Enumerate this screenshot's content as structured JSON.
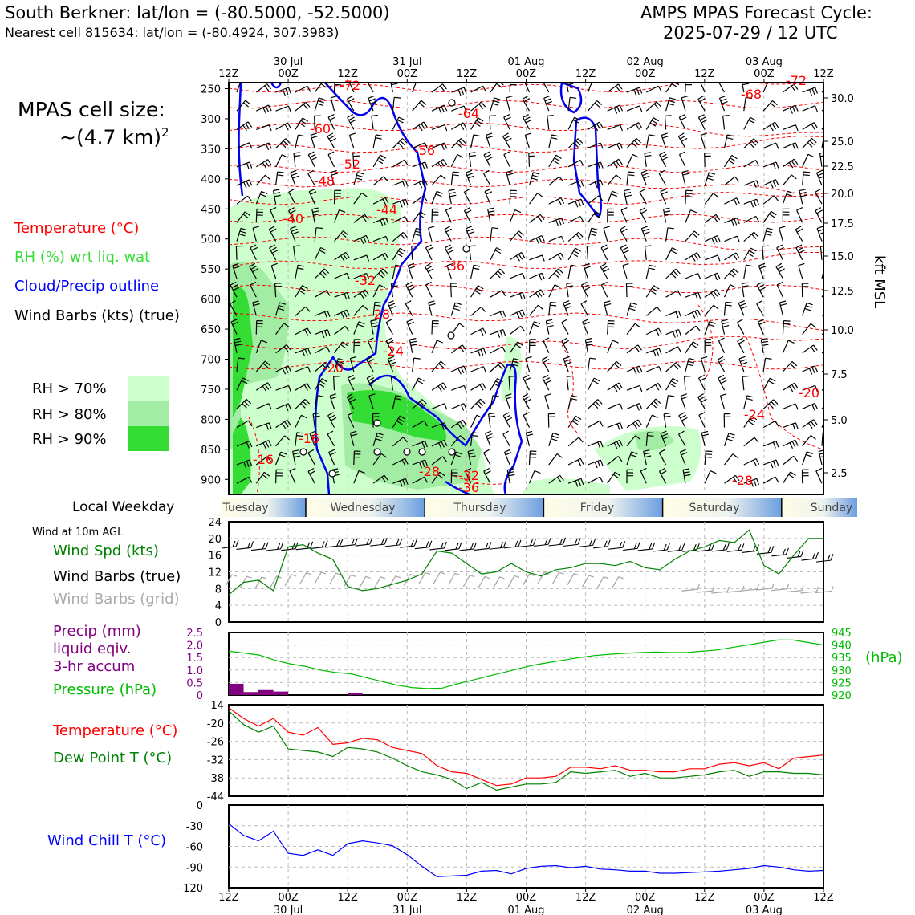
{
  "header": {
    "title_left": "South Berkner: lat/lon = (-80.5000, -52.5000)",
    "subtitle_left": "Nearest cell 815634: lat/lon = (-80.4924, 307.3983)",
    "title_right_1": "AMPS MPAS Forecast Cycle:",
    "title_right_2": "2025-07-29 / 12 UTC"
  },
  "legend": {
    "cell_size_1": "MPAS cell size:",
    "cell_size_2": "~(4.7 km)",
    "cell_size_sup": "2",
    "temperature": "Temperature (°C)",
    "rh": "RH (%) wrt liq. wat",
    "cloud": "Cloud/Precip outline",
    "barbs": "Wind Barbs (kts) (true)",
    "rh70": "RH > 70%",
    "rh80": "RH > 80%",
    "rh90": "RH > 90%",
    "colors": {
      "temperature": "#ff0000",
      "rh": "#33dd33",
      "cloud": "#0000ff",
      "rh70": "#ccffcc",
      "rh80": "#a3eca3",
      "rh90": "#33dd33"
    }
  },
  "panel_labels": {
    "local_weekday": "Local Weekday",
    "wind_10m": "Wind at 10m AGL",
    "wind_spd": "Wind Spd (kts)",
    "wind_barbs_true": "Wind Barbs (true)",
    "wind_barbs_grid": "Wind Barbs (grid)",
    "precip_1": "Precip (mm)",
    "precip_2": "liquid eqiv.",
    "precip_3": "3-hr accum",
    "pressure": "Pressure (hPa)",
    "hpa": "(hPa)",
    "temp": "Temperature (°C)",
    "dewpt": "Dew Point T (°C)",
    "windchill": "Wind Chill T (°C)",
    "kft": "kft MSL"
  },
  "time_axis": {
    "hours": [
      "12Z",
      "00Z",
      "12Z",
      "00Z",
      "12Z",
      "00Z",
      "12Z",
      "00Z",
      "12Z",
      "00Z",
      "12Z"
    ],
    "dates": [
      "",
      "30 Jul",
      "",
      "31 Jul",
      "",
      "01 Aug",
      "",
      "02 Aug",
      "",
      "03 Aug",
      ""
    ]
  },
  "weekdays": [
    "Tuesday",
    "Wednesday",
    "Thursday",
    "Friday",
    "Saturday",
    "Sunday"
  ],
  "chart_data": [
    {
      "type": "heatmap",
      "name": "time-height cross section",
      "y_pressure_ticks": [
        "250",
        "300",
        "350",
        "400",
        "450",
        "500",
        "550",
        "600",
        "650",
        "700",
        "750",
        "800",
        "850",
        "900"
      ],
      "y_kft_ticks": [
        "30.0",
        "25.0",
        "22.5",
        "20.0",
        "17.5",
        "15.0",
        "12.5",
        "10.0",
        "7.5",
        "5.0",
        "2.5"
      ],
      "temperature_labels": [
        "-72",
        "-64",
        "-60",
        "-56",
        "-52",
        "-48",
        "-44",
        "-40",
        "-36",
        "-32",
        "-28",
        "-24",
        "-20",
        "-16",
        "-16",
        "-28",
        "-32",
        "-36",
        "-68",
        "-72",
        "-20",
        "-24",
        "-28"
      ],
      "ylim": [
        925,
        240
      ]
    },
    {
      "type": "line",
      "name": "wind speed",
      "yticks": [
        "0",
        "4",
        "8",
        "12",
        "16",
        "20",
        "24"
      ],
      "ylim": [
        0,
        24
      ],
      "series": [
        {
          "values": [
            6.5,
            9.5,
            10,
            7.5,
            18,
            18.5,
            16.5,
            15,
            8.5,
            7.5,
            8,
            9,
            10,
            11.5,
            17,
            16.5,
            14,
            11.5,
            12,
            14,
            12,
            11,
            12.5,
            13,
            14,
            14,
            13.5,
            14.5,
            13,
            12.5,
            15,
            17,
            18,
            19.5,
            19,
            22,
            13.5,
            11.5,
            16,
            20,
            20
          ]
        }
      ]
    },
    {
      "type": "bar",
      "name": "precipitation and pressure",
      "left_ticks": [
        "0",
        "0.5",
        "1.0",
        "1.5",
        "2.0",
        "2.5"
      ],
      "right_ticks": [
        "920",
        "925",
        "930",
        "935",
        "940",
        "945"
      ],
      "precip_values": [
        0.45,
        0.12,
        0.2,
        0.14,
        0,
        0,
        0,
        0,
        0.08,
        0,
        0,
        0,
        0,
        0,
        0,
        0,
        0,
        0,
        0,
        0,
        0,
        0,
        0,
        0,
        0,
        0,
        0,
        0,
        0,
        0,
        0,
        0,
        0,
        0,
        0,
        0,
        0,
        0,
        0,
        0
      ],
      "pressure_values": [
        937.5,
        936.8,
        936,
        934,
        932.5,
        931.5,
        930,
        929,
        928.5,
        927,
        925.5,
        924,
        923,
        922.6,
        922.8,
        924.5,
        926,
        927.5,
        929,
        930.5,
        932,
        933,
        934,
        935,
        935.8,
        936.3,
        936.7,
        937,
        937.2,
        937,
        937,
        937.5,
        938,
        939,
        940,
        941,
        942,
        942,
        941,
        940
      ]
    },
    {
      "type": "line",
      "name": "temperature and dew point",
      "yticks": [
        "-14",
        "-20",
        "-26",
        "-32",
        "-38",
        "-44"
      ],
      "ylim": [
        -44,
        -14
      ],
      "series": [
        {
          "values": [
            -15,
            -18.5,
            -21,
            -18.5,
            -23,
            -24,
            -21.5,
            -27,
            -26.5,
            -25,
            -25.5,
            -28,
            -29,
            -30,
            -34,
            -36,
            -36.5,
            -38.5,
            -40.5,
            -40,
            -38,
            -38,
            -37.5,
            -34.5,
            -34.5,
            -35,
            -34,
            -35.5,
            -35.5,
            -36,
            -36,
            -35,
            -35,
            -33.5,
            -33,
            -34,
            -33,
            -35,
            -31.5,
            -31,
            -30.5
          ]
        },
        {
          "values": [
            -16,
            -20.5,
            -23,
            -21,
            -28.5,
            -29,
            -29.5,
            -31,
            -28,
            -28.5,
            -29.5,
            -31.5,
            -34,
            -36,
            -37,
            -38.5,
            -41.5,
            -39.5,
            -42,
            -41,
            -40,
            -40,
            -39.5,
            -36,
            -36.5,
            -36,
            -35.5,
            -37.5,
            -36.5,
            -38,
            -38,
            -37.5,
            -37,
            -36,
            -35.5,
            -37.5,
            -36,
            -36,
            -36.5,
            -36.5,
            -37
          ]
        }
      ]
    },
    {
      "type": "line",
      "name": "wind chill",
      "yticks": [
        "0",
        "-30",
        "-60",
        "-90",
        "-120"
      ],
      "ylim": [
        -120,
        0
      ],
      "series": [
        {
          "values": [
            -27,
            -44,
            -52,
            -38,
            -70,
            -73,
            -65,
            -73,
            -56,
            -52,
            -55,
            -59,
            -72,
            -89,
            -104,
            -103,
            -102,
            -96,
            -95,
            -100,
            -92,
            -89,
            -88,
            -91,
            -89,
            -93,
            -94,
            -96,
            -96,
            -99,
            -99,
            -98,
            -97,
            -96,
            -94,
            -92,
            -88,
            -90,
            -94,
            -96,
            -95
          ]
        }
      ]
    }
  ]
}
